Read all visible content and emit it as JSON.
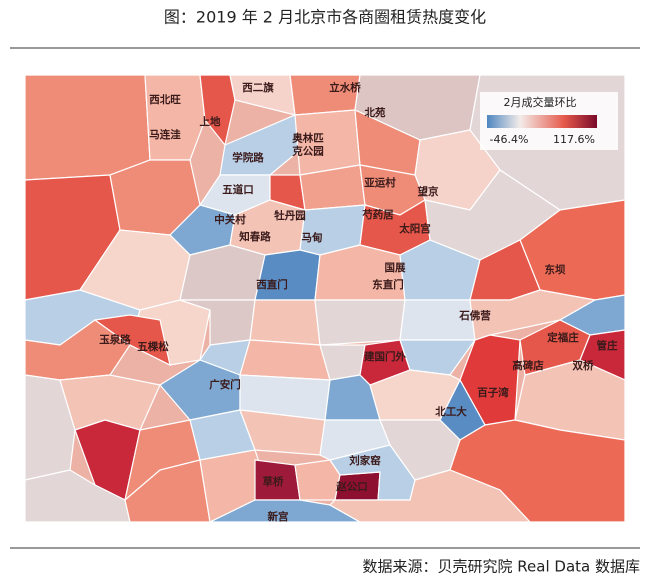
{
  "header": {
    "title": "图：2019 年 2 月北京市各商圈租赁热度变化"
  },
  "legend": {
    "title": "2月成交量环比",
    "min_label": "-46.4%",
    "max_label": "117.6%"
  },
  "labels": [
    "西北旺",
    "西二旗",
    "立水桥",
    "上地",
    "马连洼",
    "北苑",
    [
      "奥林匹",
      "克公园"
    ],
    "学院路",
    "亚运村",
    "望京",
    "五道口",
    "中关村",
    "牡丹园",
    "芍药居",
    "太阳宫",
    "知春路",
    "马甸",
    "国展",
    "东坝",
    "西直门",
    "东直门",
    "石佛营",
    "玉泉路",
    "五棵松",
    "定福庄",
    "管庄",
    "建国门外",
    "高碑店",
    "双桥",
    "广安门",
    "百子湾",
    "北工大",
    "刘家窑",
    "草桥",
    "赵公口",
    "新宫"
  ],
  "footer": {
    "source": "数据来源：贝壳研究院 Real Data 数据库"
  }
}
